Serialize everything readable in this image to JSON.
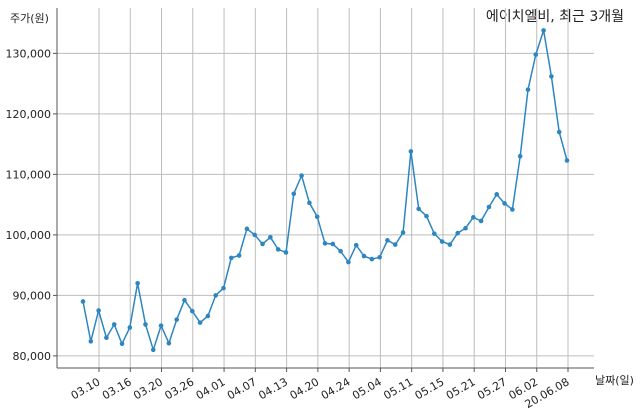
{
  "chart_data": {
    "type": "line",
    "title": "에이치엘비, 최근 3개월",
    "ylabel": "주가(원)",
    "xlabel": "날짜(일)",
    "ylim": [
      78000,
      137500
    ],
    "yticks": [
      80000,
      90000,
      100000,
      110000,
      120000,
      130000
    ],
    "ytick_labels": [
      "80,000",
      "90,000",
      "100,000",
      "110,000",
      "120,000",
      "130,000"
    ],
    "xticks": [
      "03.10",
      "03.16",
      "03.20",
      "03.26",
      "04.01",
      "04.07",
      "04.13",
      "04.20",
      "04.24",
      "05.04",
      "05.11",
      "05.15",
      "05.21",
      "05.27",
      "06.02",
      "20.06.08"
    ],
    "grid": "x",
    "line_color": "#2e86c1",
    "series": [
      {
        "values": [
          89000,
          82400,
          87500,
          83000,
          85200,
          82000,
          84700,
          92000,
          85200,
          81000,
          85000,
          82100,
          86000,
          89200,
          87400,
          85500,
          86600,
          90000,
          91200,
          96200,
          96600,
          101000,
          100000,
          98500,
          99600,
          97600,
          97100,
          106800,
          109800,
          105300,
          103000,
          98600,
          98500,
          97300,
          95500,
          98300,
          96500,
          96000,
          96300,
          99100,
          98400,
          100400,
          113800,
          104300,
          103100,
          100200,
          98900,
          98400,
          100300,
          101100,
          102900,
          102300,
          104600,
          106700,
          105200,
          104200,
          113000,
          124000,
          129800,
          133800,
          126200,
          117000,
          112300
        ]
      }
    ]
  }
}
